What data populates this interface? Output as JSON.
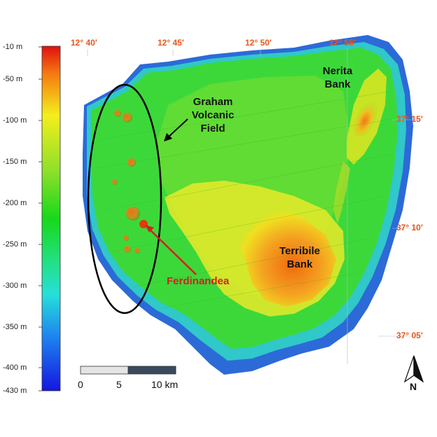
{
  "colorbar": {
    "labels": [
      "-10 m",
      "-50 m",
      "-100 m",
      "-150 m",
      "-200 m",
      "-250 m",
      "-300 m",
      "-350 m",
      "-400 m",
      "-430 m"
    ]
  },
  "coords": {
    "longitudes": [
      "12° 40′",
      "12° 45′",
      "12° 50′",
      "12° 55′"
    ],
    "latitudes": [
      "37° 15′",
      "37° 10′",
      "37° 05′"
    ]
  },
  "labels": {
    "graham": [
      "Graham",
      "Volcanic",
      "Field"
    ],
    "nerita": [
      "Nerita",
      "Bank"
    ],
    "terribile": [
      "Terribile",
      "Bank"
    ],
    "ferdinandea": "Ferdinandea"
  },
  "scalebar": {
    "ticks": [
      "0",
      "5",
      "10 km"
    ]
  },
  "north": "N",
  "colors": {
    "coord": "#e8561c",
    "ferdinandea": "#d61f1f"
  }
}
